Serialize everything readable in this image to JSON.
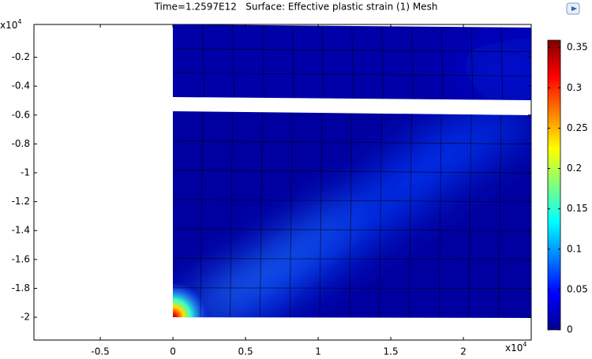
{
  "chart_data": {
    "type": "surface",
    "title": "Time=1.2597E12   Surface: Effective plastic strain (1) Mesh",
    "xlim": [
      -0.957,
      2.467
    ],
    "xticks": [
      -0.5,
      0,
      0.5,
      1,
      1.5,
      2
    ],
    "ylim": [
      -2.158,
      0.027
    ],
    "yticks": [
      -2,
      -1.8,
      -1.6,
      -1.4,
      -1.2,
      -1,
      -0.8,
      -0.6,
      -0.4,
      -0.2
    ],
    "x_multiplier": {
      "base": "x10",
      "exponent": "4"
    },
    "y_multiplier": {
      "base": "x10",
      "exponent": "4"
    },
    "colorbar": {
      "lim": [
        0,
        0.359
      ],
      "ticks": [
        0,
        0.05,
        0.1,
        0.15,
        0.2,
        0.25,
        0.3,
        0.35
      ]
    }
  }
}
